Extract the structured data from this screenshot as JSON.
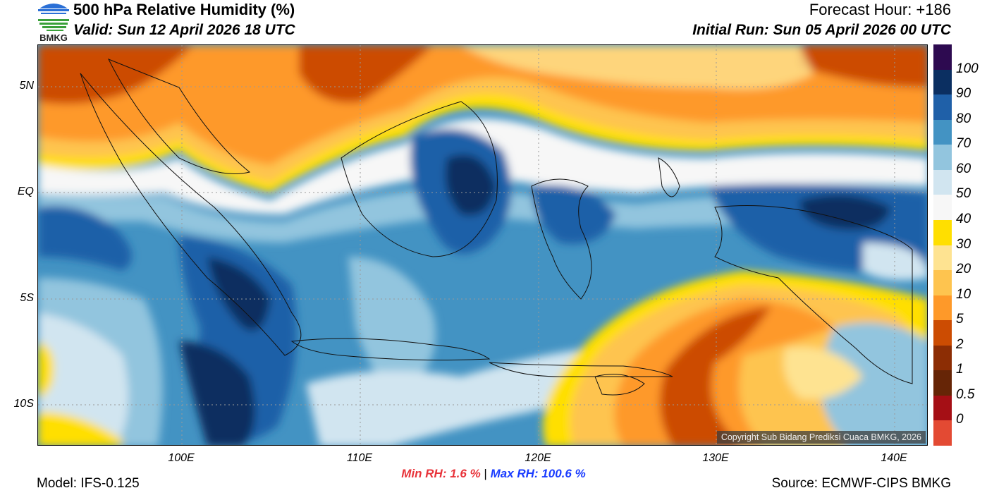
{
  "header": {
    "title": "500 hPa Relative Humidity (%)",
    "valid": "Valid: Sun 12 April 2026 18 UTC",
    "forecast_hour": "Forecast Hour: +186",
    "initial_run": "Initial Run: Sun 05 April 2026 00 UTC",
    "logo_text": "BMKG"
  },
  "map": {
    "variable": "500 hPa Relative Humidity",
    "lat_labels": [
      "5N",
      "EQ",
      "5S",
      "10S"
    ],
    "lon_labels": [
      "100E",
      "110E",
      "120E",
      "130E",
      "140E"
    ],
    "copyright": "Copyright Sub Bidang Prediksi Cuaca BMKG, 2026"
  },
  "colorbar": {
    "labels": [
      "100",
      "90",
      "80",
      "70",
      "60",
      "50",
      "40",
      "30",
      "20",
      "10",
      "5",
      "2",
      "1",
      "0.5",
      "0"
    ],
    "colors": [
      "#2d0a50",
      "#0b2f61",
      "#1f60a8",
      "#4393c3",
      "#92c5de",
      "#d1e5f0",
      "#f7f7f7",
      "#ffdf00",
      "#fee391",
      "#fec44f",
      "#fe9929",
      "#cc4c02",
      "#8c2d04",
      "#662506",
      "#a50f15",
      "#e34a33"
    ]
  },
  "stats": {
    "min_label": "Min RH:   1.6 %",
    "separator": "|",
    "max_label": "Max RH: 100.6 %",
    "min_color": "#e8333a",
    "max_color": "#1a3cff"
  },
  "footer": {
    "model": "Model: IFS-0.125",
    "source": "Source: ECMWF-CIPS BMKG"
  }
}
